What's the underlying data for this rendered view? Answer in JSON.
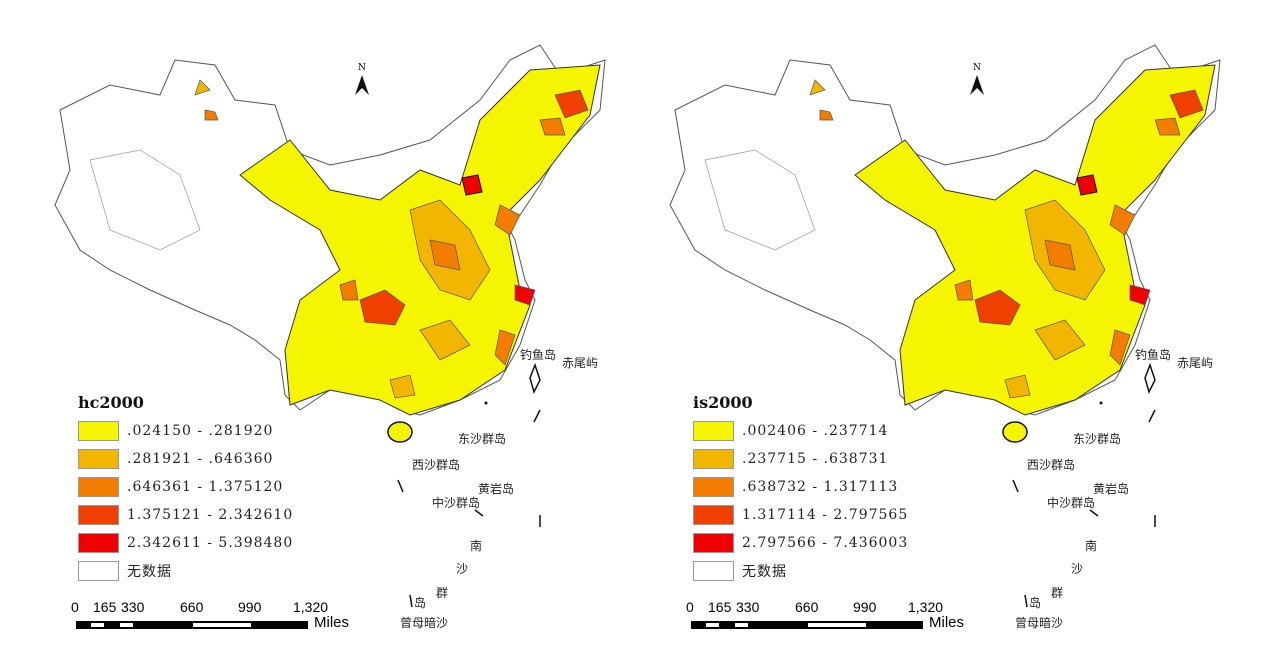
{
  "maps": [
    {
      "legend_title": "hc2000",
      "classes": [
        {
          "label": ".024150 - .281920",
          "color": "#f5f500"
        },
        {
          "label": ".281921 - .646360",
          "color": "#f2b500"
        },
        {
          "label": ".646361 - 1.375120",
          "color": "#f27d00"
        },
        {
          "label": "1.375121 - 2.342610",
          "color": "#f04000"
        },
        {
          "label": "2.342611 - 5.398480",
          "color": "#f00000"
        },
        {
          "label": "无数据",
          "color": "#ffffff"
        }
      ]
    },
    {
      "legend_title": "is2000",
      "classes": [
        {
          "label": ".002406 - .237714",
          "color": "#f5f500"
        },
        {
          "label": ".237715 - .638731",
          "color": "#f2b500"
        },
        {
          "label": ".638732 - 1.317113",
          "color": "#f27d00"
        },
        {
          "label": "1.317114 - 2.797565",
          "color": "#f04000"
        },
        {
          "label": "2.797566 - 7.436003",
          "color": "#f00000"
        },
        {
          "label": "无数据",
          "color": "#ffffff"
        }
      ]
    }
  ],
  "scale_bar": {
    "ticks": [
      "0",
      "165",
      "330",
      "660",
      "990",
      "1,320"
    ],
    "unit": "Miles"
  },
  "north_label": "N",
  "islands": {
    "diaoyu": "钓鱼岛",
    "chiwei": "赤尾屿",
    "dongsha": "东沙群岛",
    "xisha": "西沙群岛",
    "huangyan": "黄岩岛",
    "zhongsha": "中沙群岛",
    "nansha": [
      "南",
      "沙",
      "群",
      "岛"
    ],
    "zengmu": "曾母暗沙"
  }
}
